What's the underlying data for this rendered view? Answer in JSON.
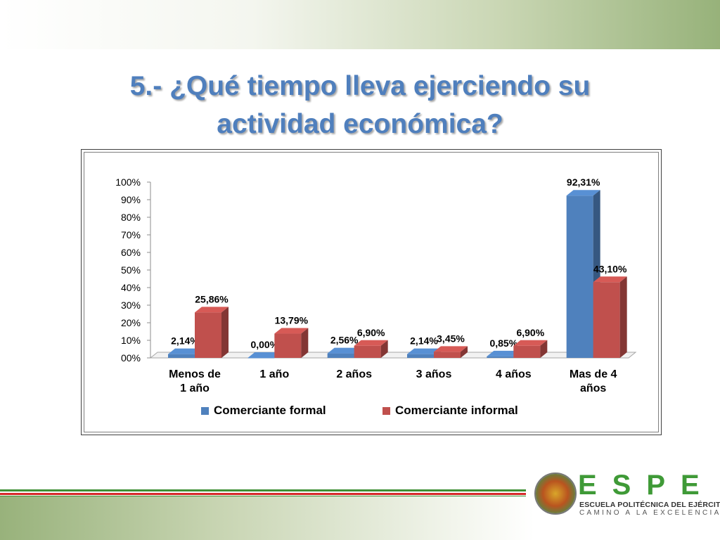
{
  "slide": {
    "title_line1": "5.- ¿Qué tiempo lleva ejerciendo su",
    "title_line2": "actividad económica?"
  },
  "chart_data": {
    "type": "bar",
    "categories": [
      [
        "Menos de",
        "1 año"
      ],
      [
        "1 año"
      ],
      [
        "2 años"
      ],
      [
        "3 años"
      ],
      [
        "4 años"
      ],
      [
        "Mas de 4",
        "años"
      ]
    ],
    "series": [
      {
        "name": "Comerciante formal",
        "values": [
          2.14,
          0.0,
          2.56,
          2.14,
          0.85,
          92.31
        ],
        "labels": [
          "2,14%",
          "0,00%",
          "2,56%",
          "2,14%",
          "0,85%",
          "92,31%"
        ],
        "color": "#4f81bd"
      },
      {
        "name": "Comerciante informal",
        "values": [
          25.86,
          13.79,
          6.9,
          3.45,
          6.9,
          43.1
        ],
        "labels": [
          "25,86%",
          "13,79%",
          "6,90%",
          "3,45%",
          "6,90%",
          "43,10%"
        ],
        "color": "#c0504d"
      }
    ],
    "ylim": [
      0,
      100
    ],
    "yticks": [
      "00%",
      "10%",
      "20%",
      "30%",
      "40%",
      "50%",
      "60%",
      "70%",
      "80%",
      "90%",
      "100%"
    ],
    "grid": false,
    "legend": "bottom"
  },
  "logo": {
    "letters": "ESPE",
    "subtitle": "ESCUELA POLITÉCNICA DEL EJÉRCITO",
    "tagline": "CAMINO A LA EXCELENCIA"
  },
  "colors": {
    "title": "#4f7fbd",
    "stripe_green": "#3f8f35",
    "stripe_red": "#d62b2b"
  }
}
